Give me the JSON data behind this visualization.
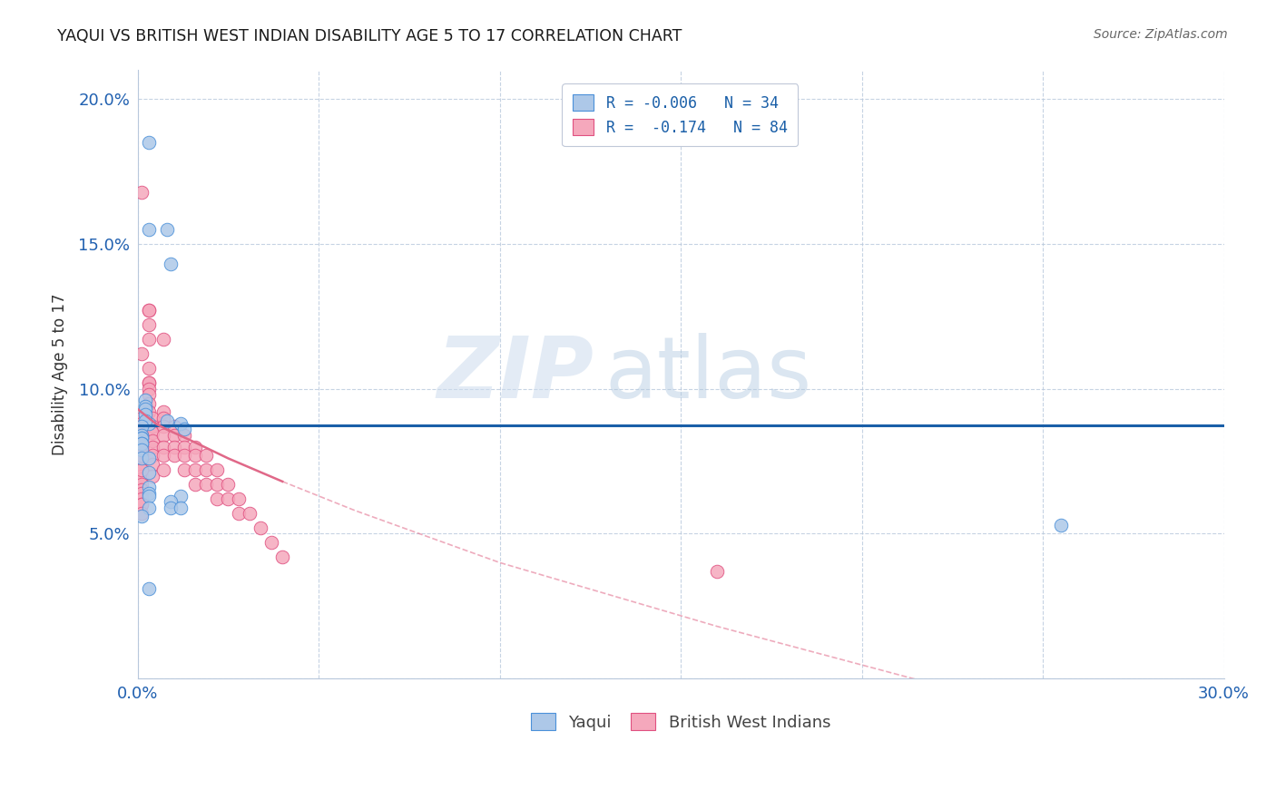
{
  "title": "YAQUI VS BRITISH WEST INDIAN DISABILITY AGE 5 TO 17 CORRELATION CHART",
  "source": "Source: ZipAtlas.com",
  "ylabel": "Disability Age 5 to 17",
  "xlim": [
    0.0,
    0.3
  ],
  "ylim": [
    0.0,
    0.21
  ],
  "xticks": [
    0.0,
    0.05,
    0.1,
    0.15,
    0.2,
    0.25,
    0.3
  ],
  "yticks": [
    0.05,
    0.1,
    0.15,
    0.2
  ],
  "legend_blue_label": "R = -0.006   N = 34",
  "legend_pink_label": "R =  -0.174   N = 84",
  "legend_bottom_blue": "Yaqui",
  "legend_bottom_pink": "British West Indians",
  "blue_color": "#adc8e8",
  "pink_color": "#f5a8bc",
  "blue_edge_color": "#4a90d9",
  "pink_edge_color": "#e05080",
  "blue_line_color": "#1a5fa8",
  "pink_line_color": "#e06888",
  "watermark_zip": "ZIP",
  "watermark_atlas": "atlas",
  "yaqui_x": [
    0.003,
    0.003,
    0.008,
    0.009,
    0.003,
    0.012,
    0.013,
    0.002,
    0.002,
    0.002,
    0.002,
    0.002,
    0.001,
    0.001,
    0.001,
    0.001,
    0.001,
    0.001,
    0.001,
    0.001,
    0.003,
    0.003,
    0.008,
    0.003,
    0.003,
    0.003,
    0.012,
    0.009,
    0.009,
    0.003,
    0.012,
    0.001,
    0.003,
    0.255
  ],
  "yaqui_y": [
    0.185,
    0.155,
    0.155,
    0.143,
    0.088,
    0.088,
    0.086,
    0.096,
    0.094,
    0.093,
    0.091,
    0.089,
    0.087,
    0.084,
    0.083,
    0.083,
    0.081,
    0.081,
    0.079,
    0.076,
    0.076,
    0.071,
    0.089,
    0.066,
    0.064,
    0.063,
    0.063,
    0.061,
    0.059,
    0.059,
    0.059,
    0.056,
    0.031,
    0.053
  ],
  "bwi_x": [
    0.001,
    0.003,
    0.003,
    0.003,
    0.003,
    0.007,
    0.001,
    0.003,
    0.003,
    0.003,
    0.003,
    0.003,
    0.003,
    0.003,
    0.001,
    0.001,
    0.001,
    0.001,
    0.001,
    0.001,
    0.001,
    0.001,
    0.001,
    0.001,
    0.001,
    0.001,
    0.001,
    0.001,
    0.001,
    0.001,
    0.001,
    0.001,
    0.001,
    0.001,
    0.001,
    0.001,
    0.001,
    0.001,
    0.004,
    0.004,
    0.004,
    0.004,
    0.004,
    0.004,
    0.004,
    0.004,
    0.007,
    0.007,
    0.007,
    0.007,
    0.007,
    0.007,
    0.007,
    0.01,
    0.01,
    0.01,
    0.01,
    0.013,
    0.013,
    0.013,
    0.013,
    0.016,
    0.016,
    0.016,
    0.016,
    0.019,
    0.019,
    0.019,
    0.022,
    0.022,
    0.022,
    0.025,
    0.025,
    0.028,
    0.028,
    0.031,
    0.034,
    0.037,
    0.04,
    0.16,
    0.001,
    0.001,
    0.001,
    0.001
  ],
  "bwi_y": [
    0.168,
    0.127,
    0.127,
    0.122,
    0.117,
    0.117,
    0.112,
    0.107,
    0.102,
    0.102,
    0.1,
    0.098,
    0.095,
    0.092,
    0.09,
    0.088,
    0.087,
    0.085,
    0.085,
    0.084,
    0.084,
    0.082,
    0.08,
    0.077,
    0.076,
    0.075,
    0.074,
    0.072,
    0.072,
    0.07,
    0.069,
    0.067,
    0.065,
    0.064,
    0.062,
    0.06,
    0.06,
    0.057,
    0.09,
    0.087,
    0.085,
    0.082,
    0.08,
    0.077,
    0.074,
    0.07,
    0.092,
    0.09,
    0.087,
    0.084,
    0.08,
    0.077,
    0.072,
    0.087,
    0.084,
    0.08,
    0.077,
    0.084,
    0.08,
    0.077,
    0.072,
    0.08,
    0.077,
    0.072,
    0.067,
    0.077,
    0.072,
    0.067,
    0.072,
    0.067,
    0.062,
    0.067,
    0.062,
    0.062,
    0.057,
    0.057,
    0.052,
    0.047,
    0.042,
    0.037,
    0.084,
    0.08,
    0.077,
    0.072
  ],
  "blue_trendline_y0": 0.0875,
  "blue_trendline_y1": 0.0875,
  "pink_trendline_x": [
    0.0,
    0.001,
    0.003,
    0.005,
    0.008,
    0.015,
    0.025,
    0.04,
    0.06,
    0.1,
    0.16,
    0.25,
    0.35
  ],
  "pink_trendline_y": [
    0.093,
    0.092,
    0.09,
    0.088,
    0.086,
    0.082,
    0.076,
    0.068,
    0.058,
    0.04,
    0.018,
    -0.012,
    -0.046
  ]
}
